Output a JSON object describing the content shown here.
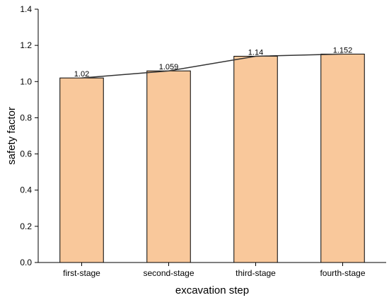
{
  "chart_data": {
    "type": "bar",
    "title": "",
    "xlabel": "excavation step",
    "ylabel": "safety factor",
    "categories": [
      "first-stage",
      "second-stage",
      "third-stage",
      "fourth-stage"
    ],
    "values": [
      1.02,
      1.059,
      1.14,
      1.152
    ],
    "data_labels": [
      "1.02",
      "1.059",
      "1.14",
      "1.152"
    ],
    "ylim": [
      0.0,
      1.4
    ],
    "yticks": [
      "0.0",
      "0.2",
      "0.4",
      "0.6",
      "0.8",
      "1.0",
      "1.2",
      "1.4"
    ],
    "overlay_line": true,
    "grid": false,
    "colors": {
      "bar_fill": "#f9c89b",
      "bar_stroke": "#000000",
      "line": "#333333"
    }
  }
}
